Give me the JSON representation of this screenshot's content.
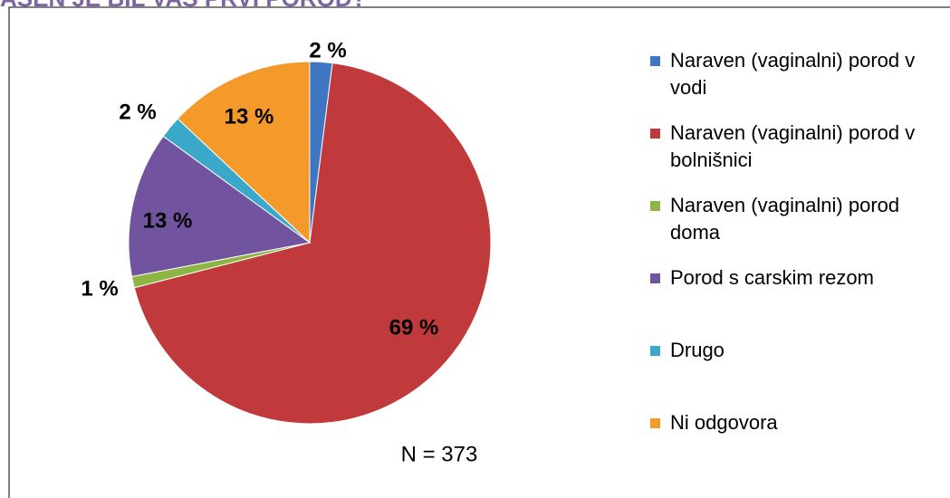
{
  "chart_data": {
    "type": "pie",
    "title": "AŠEN JE BIL VAŠ PRVI POROD?",
    "annotation": "N = 373",
    "categories": [
      "Naraven (vaginalni) porod v vodi",
      "Naraven (vaginalni) porod v bolnišnici",
      "Naraven (vaginalni) porod doma",
      "Porod s carskim rezom",
      "Drugo",
      "Ni odgovora"
    ],
    "values": [
      2,
      69,
      1,
      13,
      2,
      13
    ],
    "value_labels": [
      "2 %",
      "69 %",
      "1 %",
      "13 %",
      "2 %",
      "13 %"
    ],
    "colors": [
      "#3f76c4",
      "#c0393b",
      "#8db543",
      "#7153a0",
      "#3aa9c9",
      "#f39a2b"
    ],
    "legend": "right"
  }
}
